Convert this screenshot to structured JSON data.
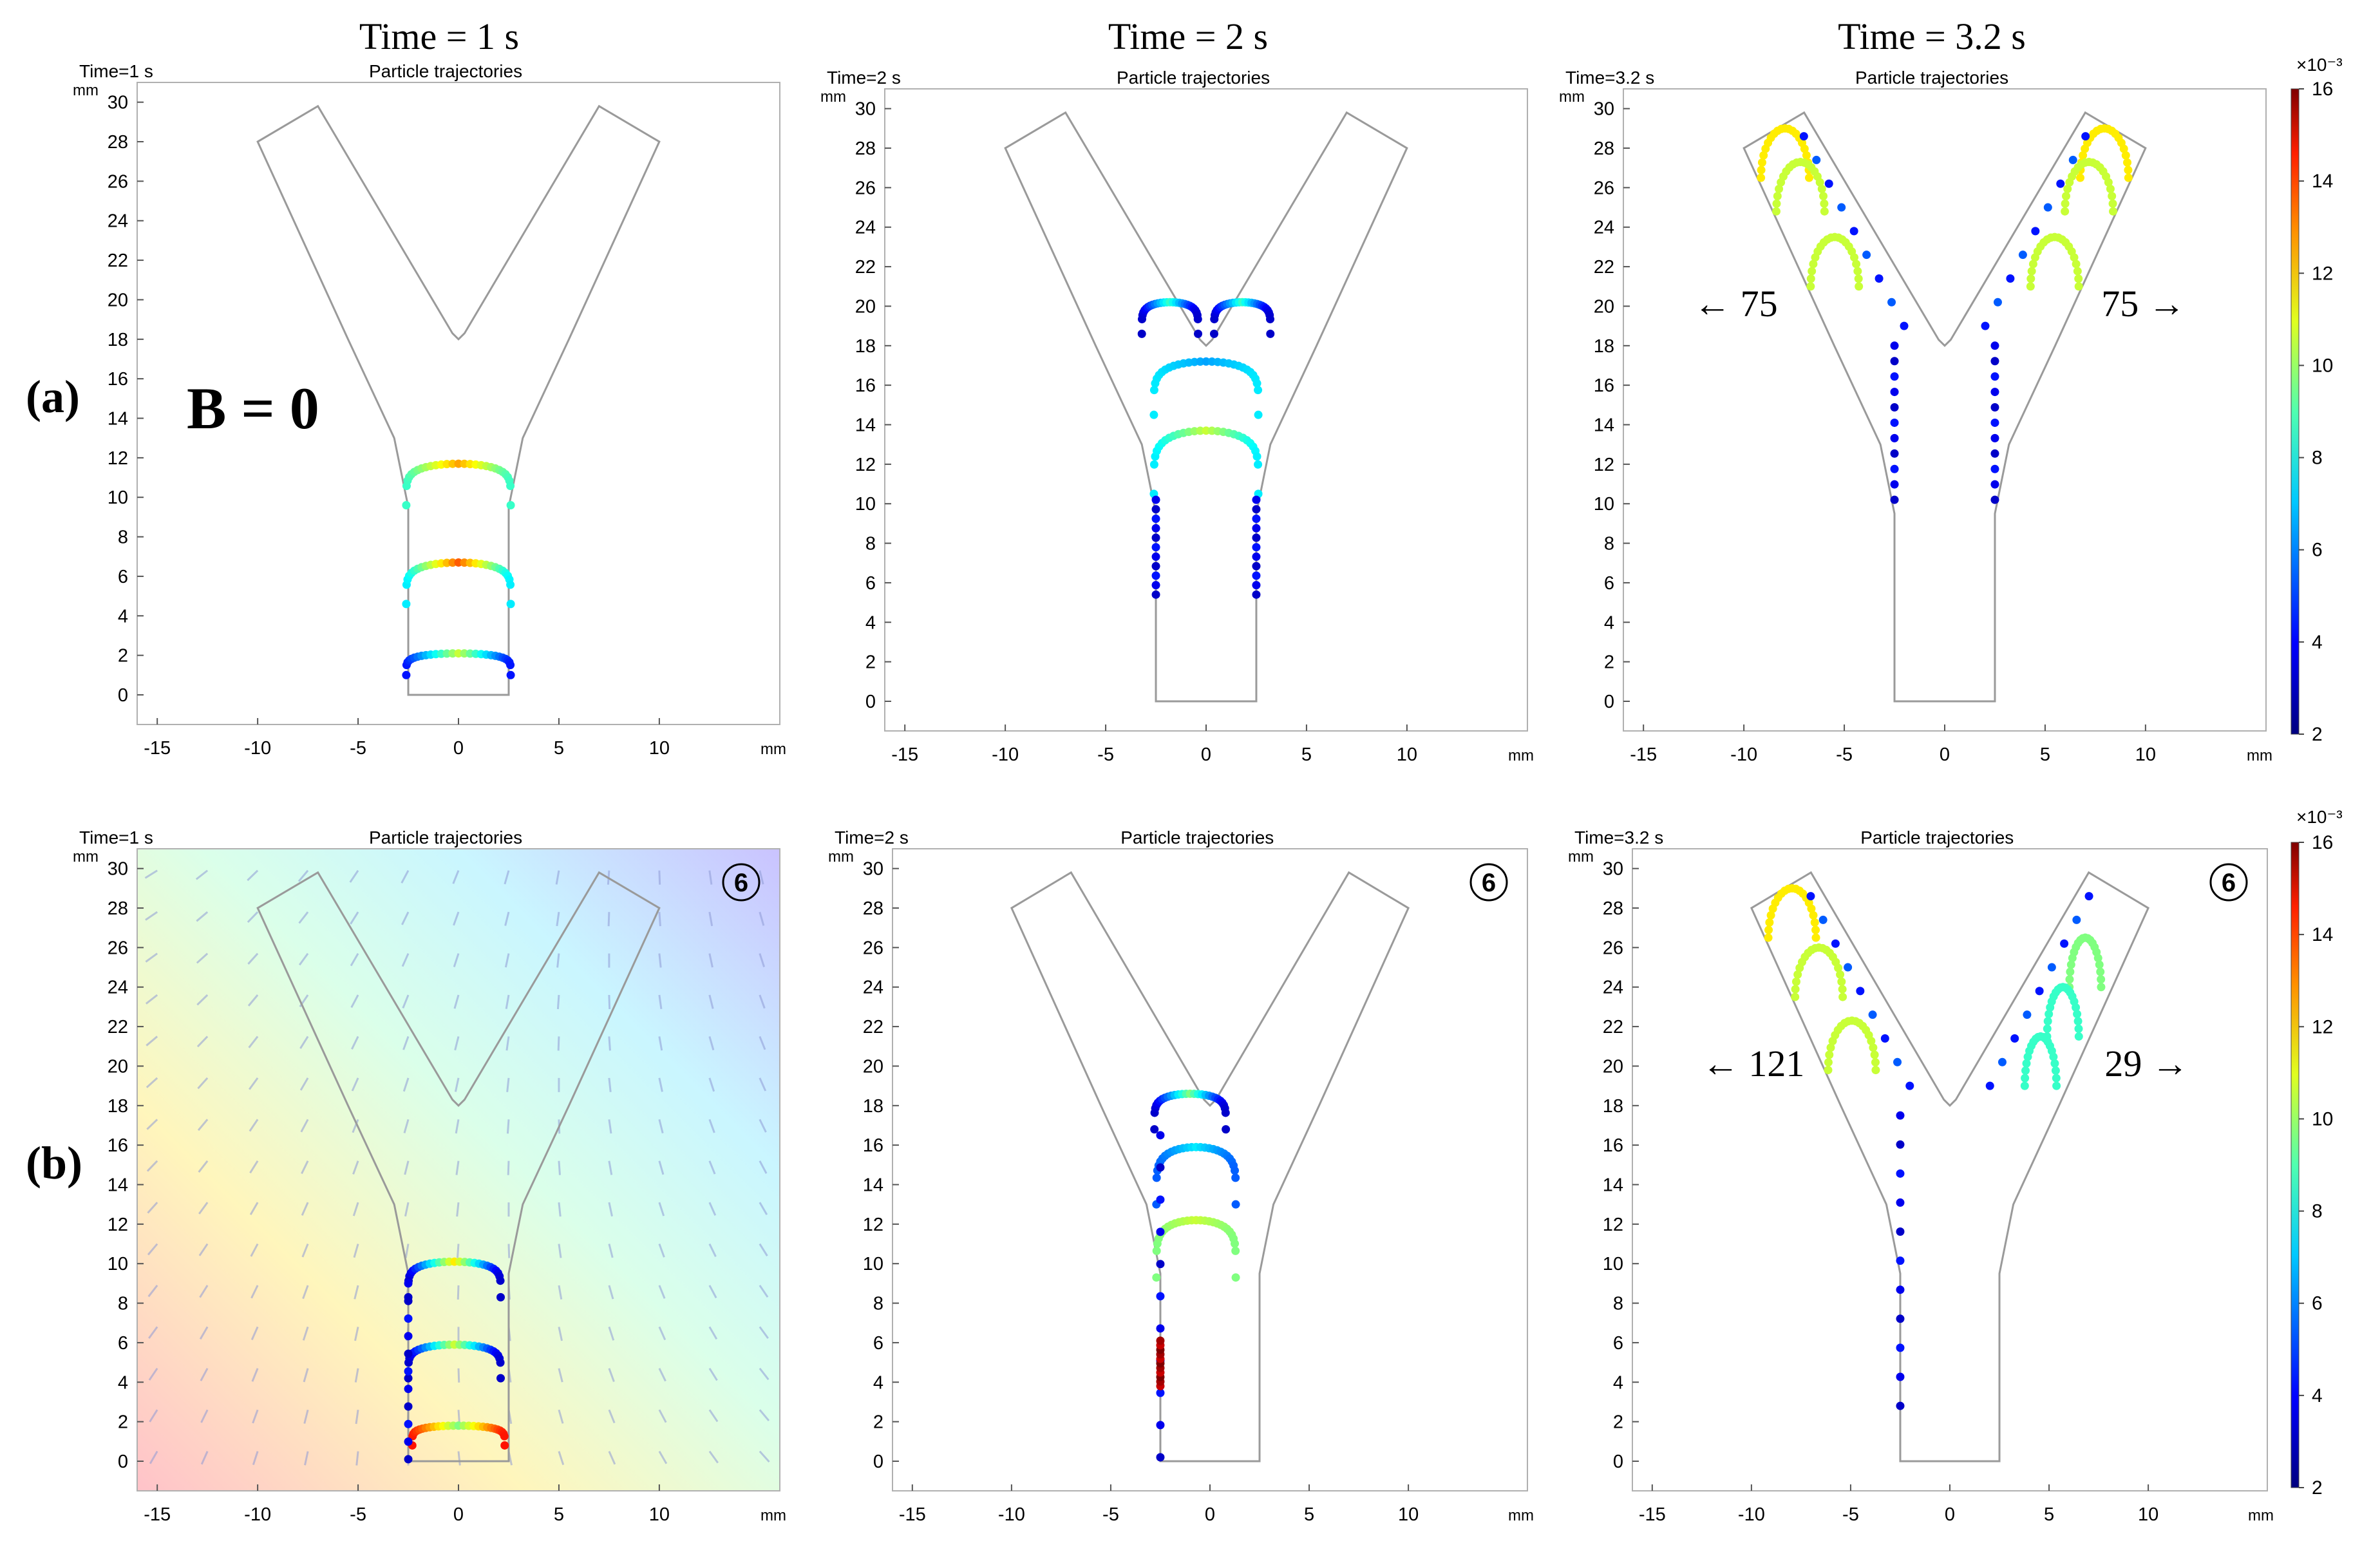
{
  "column_headers": [
    "Time = 1 s",
    "Time = 2 s",
    "Time = 3.2 s"
  ],
  "row_labels": [
    "(a)",
    "(b)"
  ],
  "b_zero_label": "B = 0",
  "plot_title": "Particle trajectories",
  "axis_unit": "mm",
  "circled_label": "6",
  "colorbar": {
    "exponent_label": "×10⁻³",
    "min": 2,
    "max": 16,
    "ticks": [
      "2",
      "4",
      "6",
      "8",
      "10",
      "12",
      "14",
      "16"
    ]
  },
  "colors": {
    "outline": "#9a9a9a",
    "frame": "#b0b0b0",
    "arrow": "#8f9bd6"
  },
  "chart_data": [
    {
      "id": "a1",
      "type": "scatter",
      "time_label": "Time=1 s",
      "title": "Particle trajectories",
      "xlim": [
        -16,
        16
      ],
      "ylim": [
        -1.5,
        31
      ],
      "xticks": [
        -15,
        -10,
        -5,
        0,
        5,
        10
      ],
      "yticks": [
        0,
        2,
        4,
        6,
        8,
        10,
        12,
        14,
        16,
        18,
        20,
        22,
        24,
        26,
        28,
        30
      ],
      "field": false,
      "circled": false,
      "colorbar": false,
      "left_count": "",
      "right_count": "",
      "series": [
        {
          "name": "front 1",
          "cx": 0,
          "y0": 9.6,
          "h": 2.1,
          "w": 2.6,
          "c1": 12,
          "c2": 8
        },
        {
          "name": "front 2",
          "cx": 0,
          "y0": 4.6,
          "h": 2.1,
          "w": 2.6,
          "c1": 13,
          "c2": 7
        },
        {
          "name": "front 3",
          "cx": 0,
          "y0": 1.0,
          "h": 1.1,
          "w": 2.6,
          "c1": 10,
          "c2": 4
        }
      ]
    },
    {
      "id": "a2",
      "type": "scatter",
      "time_label": "Time=2 s",
      "title": "Particle trajectories",
      "xlim": [
        -16,
        16
      ],
      "ylim": [
        -1.5,
        31
      ],
      "xticks": [
        -15,
        -10,
        -5,
        0,
        5,
        10
      ],
      "yticks": [
        0,
        2,
        4,
        6,
        8,
        10,
        12,
        14,
        16,
        18,
        20,
        22,
        24,
        26,
        28,
        30
      ],
      "field": false,
      "circled": false,
      "colorbar": false,
      "left_count": "",
      "right_count": "",
      "series": [
        {
          "name": "front 1",
          "cx": -1.8,
          "y0": 18.6,
          "h": 1.6,
          "w": 1.4,
          "c1": 8,
          "c2": 3
        },
        {
          "name": "front 2",
          "cx": 1.8,
          "y0": 18.6,
          "h": 1.6,
          "w": 1.4,
          "c1": 8,
          "c2": 3
        },
        {
          "name": "front 3",
          "cx": 0,
          "y0": 14.5,
          "h": 2.7,
          "w": 2.6,
          "c1": 6,
          "c2": 7
        },
        {
          "name": "front 4",
          "cx": 0,
          "y0": 10.5,
          "h": 3.2,
          "w": 2.6,
          "c1": 10,
          "c2": 7
        },
        {
          "name": "wall",
          "wall": [
            -2.5,
            2.5
          ],
          "wy": [
            5.4,
            10.2
          ],
          "c1": 3
        }
      ]
    },
    {
      "id": "a3",
      "type": "scatter",
      "time_label": "Time=3.2 s",
      "title": "Particle trajectories",
      "xlim": [
        -16,
        16
      ],
      "ylim": [
        -1.5,
        31
      ],
      "xticks": [
        -15,
        -10,
        -5,
        0,
        5,
        10
      ],
      "yticks": [
        0,
        2,
        4,
        6,
        8,
        10,
        12,
        14,
        16,
        18,
        20,
        22,
        24,
        26,
        28,
        30
      ],
      "field": false,
      "circled": false,
      "colorbar": true,
      "left_count": "← 75",
      "right_count": "75 →",
      "series": [
        {
          "name": "arm left",
          "arm": -1,
          "hooks": [
            29.0,
            27.3,
            23.5
          ],
          "c1": 11,
          "c2": 4
        },
        {
          "name": "arm right",
          "arm": 1,
          "hooks": [
            29.0,
            27.3,
            23.5
          ],
          "c1": 11,
          "c2": 4
        },
        {
          "name": "wall",
          "wall": [
            -2.5,
            2.5
          ],
          "wy": [
            10.2,
            18.0
          ],
          "c1": 3
        }
      ]
    },
    {
      "id": "b1",
      "type": "scatter",
      "time_label": "Time=1 s",
      "title": "Particle trajectories",
      "xlim": [
        -16,
        16
      ],
      "ylim": [
        -1.5,
        31
      ],
      "xticks": [
        -15,
        -10,
        -5,
        0,
        5,
        10
      ],
      "yticks": [
        0,
        2,
        4,
        6,
        8,
        10,
        12,
        14,
        16,
        18,
        20,
        22,
        24,
        26,
        28,
        30
      ],
      "field": true,
      "circled": true,
      "colorbar": false,
      "left_count": "",
      "right_count": "",
      "series": [
        {
          "name": "front 1",
          "cx": -0.2,
          "y0": 8.3,
          "h": 1.8,
          "w": 2.3,
          "c1": 11,
          "c2": 3
        },
        {
          "name": "front 2",
          "cx": -0.2,
          "y0": 4.2,
          "h": 1.7,
          "w": 2.3,
          "c1": 10,
          "c2": 3
        },
        {
          "name": "front 3",
          "cx": 0,
          "y0": 0.8,
          "h": 1.0,
          "w": 2.3,
          "c1": 9,
          "c2": 14
        },
        {
          "name": "wall",
          "wall": [
            -2.5
          ],
          "wy": [
            0.1,
            9.0
          ],
          "c1": 3
        }
      ]
    },
    {
      "id": "b2",
      "type": "scatter",
      "time_label": "Time=2 s",
      "title": "Particle trajectories",
      "xlim": [
        -16,
        16
      ],
      "ylim": [
        -1.5,
        31
      ],
      "xticks": [
        -15,
        -10,
        -5,
        0,
        5,
        10
      ],
      "yticks": [
        0,
        2,
        4,
        6,
        8,
        10,
        12,
        14,
        16,
        18,
        20,
        22,
        24,
        26,
        28,
        30
      ],
      "field": true,
      "circled": true,
      "colorbar": false,
      "left_count": "",
      "right_count": "",
      "series": [
        {
          "name": "front 1",
          "cx": -1.0,
          "y0": 16.8,
          "h": 1.8,
          "w": 1.8,
          "c1": 9,
          "c2": 3
        },
        {
          "name": "front 2",
          "cx": -0.7,
          "y0": 13.0,
          "h": 2.9,
          "w": 2.0,
          "c1": 7,
          "c2": 5
        },
        {
          "name": "front 3",
          "cx": -0.7,
          "y0": 9.3,
          "h": 2.9,
          "w": 2.0,
          "c1": 10,
          "c2": 9
        },
        {
          "name": "wall",
          "wall": [
            -2.5
          ],
          "wy": [
            0.2,
            16.5
          ],
          "c1": 3
        },
        {
          "name": "red",
          "wall": [
            -2.5
          ],
          "wy": [
            3.8,
            6.1
          ],
          "c1": 15
        }
      ]
    },
    {
      "id": "b3",
      "type": "scatter",
      "time_label": "Time=3.2 s",
      "title": "Particle trajectories",
      "xlim": [
        -16,
        16
      ],
      "ylim": [
        -1.5,
        31
      ],
      "xticks": [
        -15,
        -10,
        -5,
        0,
        5,
        10
      ],
      "yticks": [
        0,
        2,
        4,
        6,
        8,
        10,
        12,
        14,
        16,
        18,
        20,
        22,
        24,
        26,
        28,
        30
      ],
      "field": true,
      "circled": true,
      "colorbar": true,
      "left_count": "← 121",
      "right_count": "29 →",
      "series": [
        {
          "name": "arm left",
          "arm": -1,
          "hooks": [
            29.0,
            26.0,
            22.3
          ],
          "c1": 11,
          "c2": 4
        },
        {
          "name": "arm right small",
          "arm": 1,
          "hooks": [
            26.5,
            24.0,
            21.5
          ],
          "c1": 9,
          "c2": 4,
          "small": true
        },
        {
          "name": "wall",
          "wall": [
            -2.5
          ],
          "wy": [
            2.8,
            17.5
          ],
          "c1": 3
        }
      ]
    }
  ]
}
